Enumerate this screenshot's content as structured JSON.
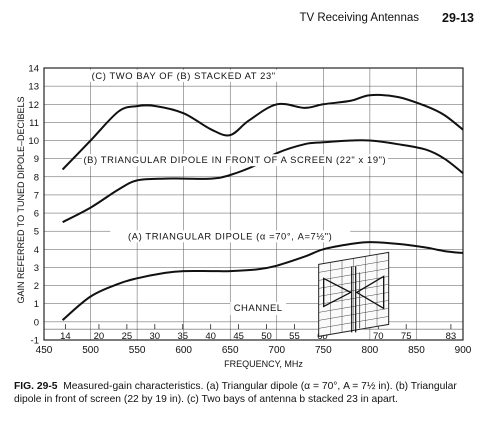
{
  "header": {
    "title": "TV Receiving Antennas",
    "page": "29-13"
  },
  "caption": {
    "label": "FIG. 29-5",
    "text": "Measured-gain characteristics. (a) Triangular dipole (α = 70°, A = 7½ in). (b) Triangular dipole in front of screen (22 by 19 in). (c) Two bays of antenna b stacked 23 in apart."
  },
  "chart_data": {
    "type": "line",
    "xlabel": "FREQUENCY, MHz",
    "ylabel": "GAIN REFERRED TO TUNED DIPOLE–DECIBELS",
    "xlim": [
      450,
      900
    ],
    "ylim": [
      -1,
      14
    ],
    "x_ticks": [
      "450",
      "500",
      "550",
      "600",
      "650",
      "700",
      "750",
      "800",
      "850",
      "900"
    ],
    "y_ticks": [
      "-1",
      "0",
      "1",
      "2",
      "3",
      "4",
      "5",
      "6",
      "7",
      "8",
      "9",
      "10",
      "11",
      "12",
      "13",
      "14"
    ],
    "grid": true,
    "channels": {
      "label": "CHANNEL",
      "ticks": [
        {
          "label": "14",
          "freq": 473
        },
        {
          "label": "20",
          "freq": 509
        },
        {
          "label": "25",
          "freq": 539
        },
        {
          "label": "30",
          "freq": 569
        },
        {
          "label": "35",
          "freq": 599
        },
        {
          "label": "40",
          "freq": 629
        },
        {
          "label": "45",
          "freq": 659
        },
        {
          "label": "50",
          "freq": 689
        },
        {
          "label": "55",
          "freq": 719
        },
        {
          "label": "60",
          "freq": 749
        },
        {
          "label": "70",
          "freq": 809
        },
        {
          "label": "75",
          "freq": 839
        },
        {
          "label": "83",
          "freq": 887
        }
      ]
    },
    "series": [
      {
        "name": "(C) TWO BAY OF (B) STACKED AT 23\"",
        "x": [
          470,
          500,
          530,
          550,
          570,
          600,
          630,
          650,
          670,
          700,
          730,
          750,
          780,
          800,
          830,
          860,
          880,
          900
        ],
        "y": [
          8.4,
          10.0,
          11.6,
          11.9,
          11.9,
          11.5,
          10.6,
          10.3,
          11.1,
          12.0,
          11.8,
          12.0,
          12.2,
          12.5,
          12.4,
          11.9,
          11.4,
          10.6
        ]
      },
      {
        "name": "(B) TRIANGULAR DIPOLE IN FRONT OF A SCREEN (22\" x 19\")",
        "x": [
          470,
          500,
          530,
          550,
          580,
          600,
          630,
          650,
          680,
          700,
          730,
          750,
          780,
          800,
          830,
          860,
          880,
          900
        ],
        "y": [
          5.5,
          6.3,
          7.3,
          7.8,
          7.9,
          7.9,
          7.9,
          8.1,
          8.7,
          9.3,
          9.8,
          9.9,
          10.0,
          10.0,
          9.8,
          9.5,
          9.0,
          8.2
        ]
      },
      {
        "name": "(A) TRIANGULAR DIPOLE (α =70°, A=7½\")",
        "x": [
          470,
          500,
          530,
          550,
          580,
          600,
          630,
          650,
          680,
          700,
          730,
          750,
          780,
          800,
          830,
          860,
          880,
          900
        ],
        "y": [
          0.1,
          1.4,
          2.1,
          2.4,
          2.7,
          2.8,
          2.8,
          2.8,
          2.9,
          3.1,
          3.6,
          4.0,
          4.3,
          4.4,
          4.3,
          4.1,
          3.9,
          3.8
        ]
      }
    ]
  }
}
